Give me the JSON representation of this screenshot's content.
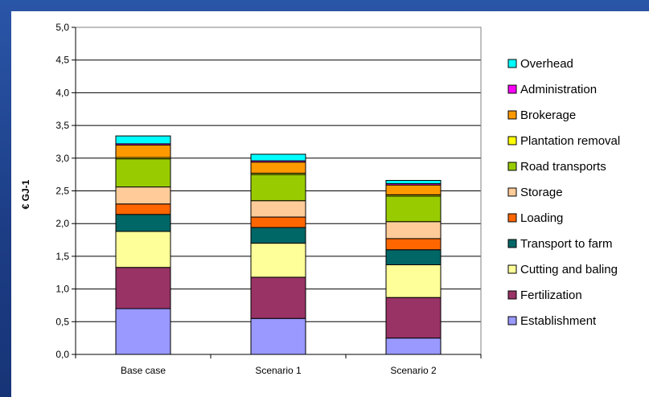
{
  "chart_data": {
    "type": "bar",
    "stacked": true,
    "title": "",
    "xlabel": "",
    "ylabel": "€ GJ-1",
    "ylim": [
      0,
      5
    ],
    "y_ticks": [
      "0,0",
      "0,5",
      "1,0",
      "1,5",
      "2,0",
      "2,5",
      "3,0",
      "3,5",
      "4,0",
      "4,5",
      "5,0"
    ],
    "grid": true,
    "legend_position": "right",
    "categories": [
      "Base case",
      "Scenario 1",
      "Scenario 2"
    ],
    "series": [
      {
        "name": "Establishment",
        "color": "#9999ff",
        "values": [
          0.7,
          0.55,
          0.25
        ]
      },
      {
        "name": "Fertilization",
        "color": "#993366",
        "values": [
          0.63,
          0.63,
          0.62
        ]
      },
      {
        "name": "Cutting and baling",
        "color": "#ffff99",
        "values": [
          0.55,
          0.52,
          0.5
        ]
      },
      {
        "name": "Transport to farm",
        "color": "#006666",
        "values": [
          0.26,
          0.24,
          0.23
        ]
      },
      {
        "name": "Loading",
        "color": "#ff6600",
        "values": [
          0.16,
          0.16,
          0.17
        ]
      },
      {
        "name": "Storage",
        "color": "#ffcc99",
        "values": [
          0.26,
          0.25,
          0.26
        ]
      },
      {
        "name": "Road transports",
        "color": "#99cc00",
        "values": [
          0.43,
          0.4,
          0.39
        ]
      },
      {
        "name": "Plantation removal",
        "color": "#ffff00",
        "values": [
          0.02,
          0.02,
          0.02
        ]
      },
      {
        "name": "Brokerage",
        "color": "#ff9900",
        "values": [
          0.19,
          0.17,
          0.15
        ]
      },
      {
        "name": "Administration",
        "color": "#ff00ff",
        "values": [
          0.02,
          0.02,
          0.02
        ]
      },
      {
        "name": "Overhead",
        "color": "#00ffff",
        "values": [
          0.12,
          0.1,
          0.05
        ]
      }
    ]
  }
}
